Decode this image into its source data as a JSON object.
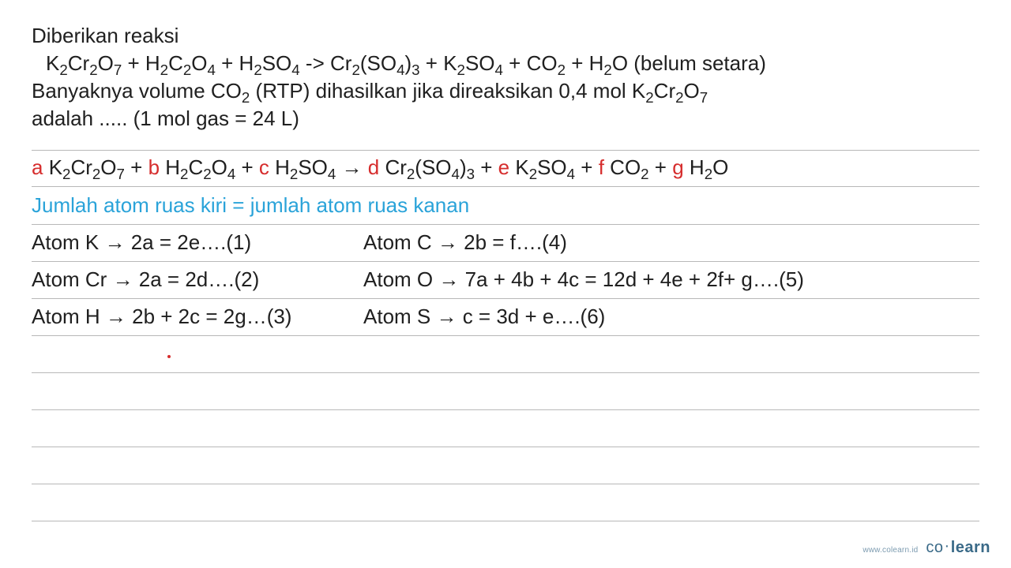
{
  "question": {
    "line1": "Diberikan reaksi",
    "reaction": {
      "r1": "K",
      "r1_s1": "2",
      "r1b": "Cr",
      "r1_s2": "2",
      "r1c": "O",
      "r1_s3": "7",
      "plus1": " + ",
      "r2": "H",
      "r2_s1": "2",
      "r2b": "C",
      "r2_s2": "2",
      "r2c": "O",
      "r2_s3": "4",
      "plus2": " + ",
      "r3": "H",
      "r3_s1": "2",
      "r3b": "SO",
      "r3_s2": "4",
      "arrow": " -> ",
      "p1": "Cr",
      "p1_s1": "2",
      "p1b": "(SO",
      "p1_s2": "4",
      "p1c": ")",
      "p1_s3": "3",
      "plus3": " + ",
      "p2": "K",
      "p2_s1": "2",
      "p2b": "SO",
      "p2_s2": "4",
      "plus4": " + ",
      "p3": "CO",
      "p3_s1": "2",
      "plus5": " + ",
      "p4": "H",
      "p4_s1": "2",
      "p4b": "O",
      "tail": " (belum setara)"
    },
    "line3a": "Banyaknya volume CO",
    "line3_s": "2",
    "line3b": " (RTP) dihasilkan jika direaksikan 0,4 mol K",
    "line3_s2": "2",
    "line3c": "Cr",
    "line3_s3": "2",
    "line3d": "O",
    "line3_s4": "7",
    "line4": "adalah ..... (1 mol gas = 24 L)"
  },
  "generic": {
    "a": "a ",
    "t1a": "K",
    "s1": "2",
    "t1b": "Cr",
    "s2": "2",
    "t1c": "O",
    "s3": "7",
    "pl1": " + ",
    "b": "b ",
    "t2a": "H",
    "s4": "2",
    "t2b": "C",
    "s5": "2",
    "t2c": "O",
    "s6": "4",
    "pl2": " + ",
    "c": "c ",
    "t3a": "H",
    "s7": "2",
    "t3b": "SO",
    "s8": "4",
    "arr": " → ",
    "d": "d ",
    "t4a": "Cr",
    "s9": "2",
    "t4b": "(SO",
    "s10": "4",
    "t4c": ")",
    "s11": "3",
    "pl3": " + ",
    "e": "e ",
    "t5a": "K",
    "s12": "2",
    "t5b": "SO",
    "s13": "4",
    "pl4": " + ",
    "f": "f ",
    "t6a": "CO",
    "s14": "2",
    "pl5": " + ",
    "g": "g ",
    "t7a": "H",
    "s15": "2",
    "t7b": "O"
  },
  "subtitle": "Jumlah atom ruas kiri = jumlah atom ruas kanan",
  "atoms": {
    "k": "Atom K  →  2a = 2e….(1)",
    "c": "Atom C   → 2b = f….(4)",
    "cr": "Atom Cr →  2a = 2d….(2)",
    "o": "Atom O → 7a + 4b + 4c = 12d + 4e + 2f+ g….(5)",
    "h": "Atom H → 2b + 2c = 2g…(3)",
    "s": "Atom S → c = 3d + e….(6)"
  },
  "footer": {
    "url": "www.colearn.id",
    "brand_a": "co",
    "brand_dot": "·",
    "brand_b": "learn"
  },
  "style": {
    "coef_color": "#d62d2d",
    "subtitle_color": "#2aa3d9",
    "rule_color": "#b8b8b8",
    "brand_color": "#3a6a88"
  }
}
